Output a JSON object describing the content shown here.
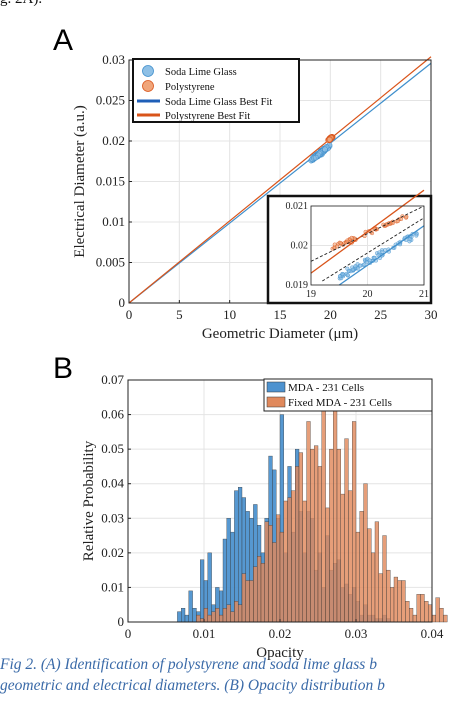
{
  "page": {
    "top_fragment": "g. 2A).",
    "caption_line1": "Fig 2. (A) Identification of polystyrene and soda lime glass b",
    "caption_line2": "geometric and electrical diameters. (B) Opacity distribution b"
  },
  "chart_data": [
    {
      "panel_label": "A",
      "type": "scatter",
      "xlabel": "Geometric Diameter (μm)",
      "ylabel": "Electrical Diameter (a.u.)",
      "xlim": [
        0,
        30
      ],
      "ylim": [
        0,
        0.03
      ],
      "xticks": [
        "0",
        "5",
        "10",
        "15",
        "20",
        "25",
        "30"
      ],
      "yticks": [
        "0",
        "0.005",
        "0.01",
        "0.015",
        "0.02",
        "0.025",
        "0.03"
      ],
      "grid": true,
      "legend_position": "top-left",
      "legend": [
        "Soda Lime Glass",
        "Polystyrene",
        "Soda Lime Glass Best Fit",
        "Polystyrene Best Fit"
      ],
      "colors": {
        "soda": "#3f8fcc",
        "soda_fill": "#8ec0e6",
        "poly": "#d9541a",
        "poly_fill": "#f0a57a"
      },
      "series": [
        {
          "name": "Soda Lime Glass",
          "kind": "scatter",
          "x_range": [
            13.5,
            22.5
          ],
          "center": [
            19.0,
            0.0185
          ],
          "slope": 0.000987,
          "spread": 0.0004
        },
        {
          "name": "Polystyrene",
          "kind": "scatter",
          "x_range": [
            19.2,
            20.8
          ],
          "center": [
            20.0,
            0.0203
          ],
          "slope": 0.00102,
          "spread": 0.0002
        },
        {
          "name": "Soda Lime Glass Best Fit",
          "kind": "line",
          "points": [
            [
              0,
              0
            ],
            [
              30,
              0.0296
            ]
          ]
        },
        {
          "name": "Polystyrene Best Fit",
          "kind": "line",
          "points": [
            [
              0,
              0
            ],
            [
              30,
              0.0304
            ]
          ]
        }
      ],
      "inset": {
        "xlim": [
          19,
          21
        ],
        "ylim": [
          0.019,
          0.021
        ],
        "xticks": [
          "19",
          "20",
          "21"
        ],
        "yticks": [
          "0.019",
          "0.02",
          "0.021"
        ]
      }
    },
    {
      "panel_label": "B",
      "type": "bar",
      "xlabel": "Opacity",
      "ylabel": "Relative Probability",
      "xlim": [
        0,
        0.04
      ],
      "ylim": [
        0,
        0.07
      ],
      "xticks": [
        "0",
        "0.01",
        "0.02",
        "0.03",
        "0.04"
      ],
      "yticks": [
        "0",
        "0.01",
        "0.02",
        "0.03",
        "0.04",
        "0.05",
        "0.06",
        "0.07"
      ],
      "grid": true,
      "legend_position": "top-right",
      "bin_width": 0.0005,
      "series": [
        {
          "name": "MDA - 231 Cells",
          "color": "#4d92cf",
          "bin_start": 0.0065,
          "values": [
            0.003,
            0.004,
            0.002,
            0.009,
            0.004,
            0.003,
            0.018,
            0.012,
            0.02,
            0.005,
            0.01,
            0.009,
            0.024,
            0.03,
            0.026,
            0.038,
            0.039,
            0.036,
            0.032,
            0.03,
            0.034,
            0.028,
            0.02,
            0.03,
            0.048,
            0.044,
            0.03,
            0.06,
            0.02,
            0.045,
            0.026,
            0.05,
            0.032,
            0.02,
            0.032,
            0.03,
            0.015,
            0.02,
            0.01,
            0.025,
            0.015,
            0.017,
            0.018,
            0.01,
            0.011,
            0.008,
            0.01,
            0.006,
            0.002,
            0.005,
            0.002,
            0.002,
            0.001,
            0.001,
            0.002,
            0.001
          ]
        },
        {
          "name": "Fixed MDA - 231 Cells",
          "color": "#e0895c",
          "bin_start": 0.009,
          "values": [
            0.002,
            0.001,
            0.004,
            0.002,
            0.003,
            0.004,
            0.002,
            0.004,
            0.005,
            0.003,
            0.006,
            0.005,
            0.014,
            0.012,
            0.012,
            0.016,
            0.019,
            0.017,
            0.029,
            0.028,
            0.023,
            0.031,
            0.026,
            0.035,
            0.036,
            0.038,
            0.045,
            0.049,
            0.035,
            0.058,
            0.05,
            0.051,
            0.045,
            0.061,
            0.033,
            0.05,
            0.063,
            0.05,
            0.037,
            0.053,
            0.038,
            0.058,
            0.026,
            0.032,
            0.04,
            0.027,
            0.02,
            0.029,
            0.014,
            0.025,
            0.015,
            0.01,
            0.013,
            0.012,
            0.012,
            0.006,
            0.004,
            0.002,
            0.008,
            0.008,
            0.006,
            0.005,
            0.002,
            0.007,
            0.004,
            0.002
          ]
        }
      ]
    }
  ]
}
